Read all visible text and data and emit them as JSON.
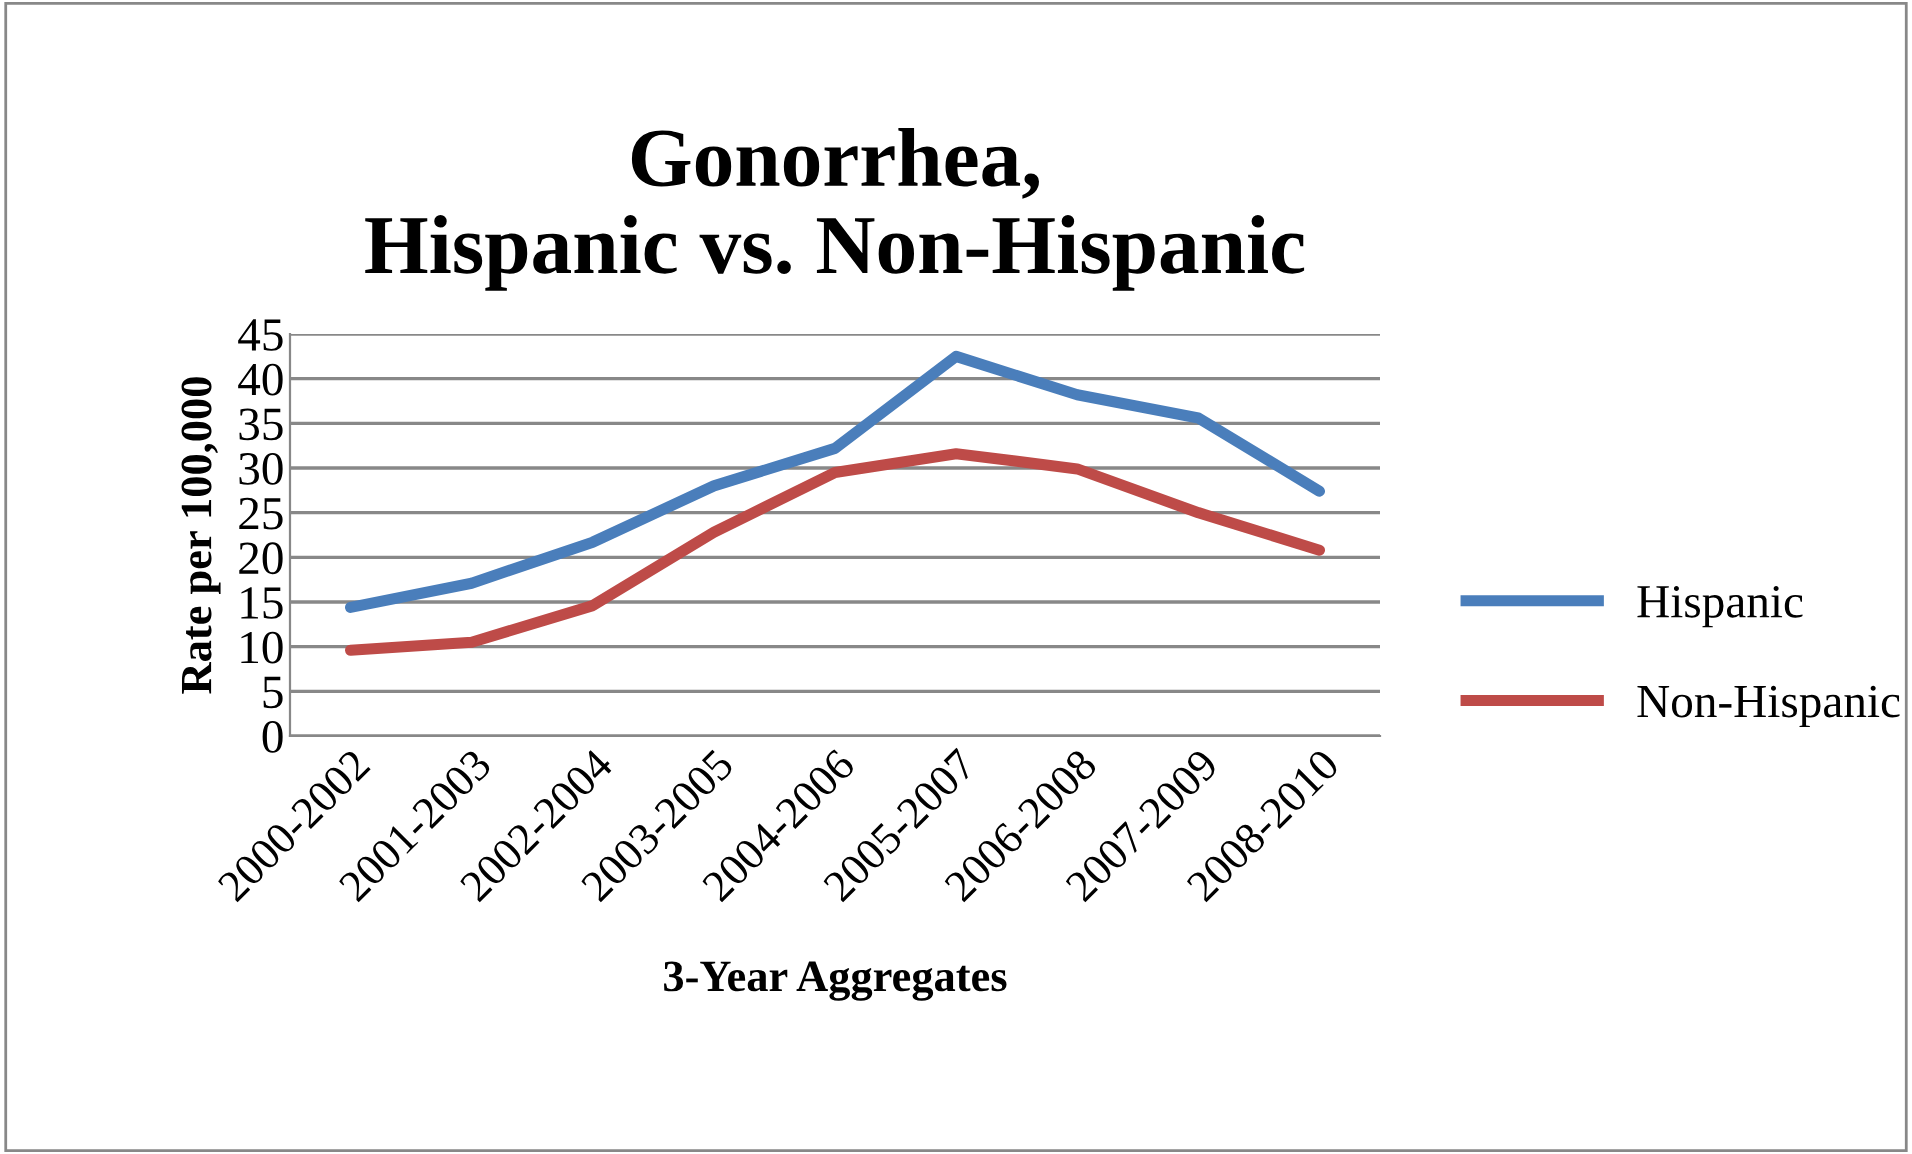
{
  "chart_data": {
    "type": "line",
    "title": "Gonorrhea,\nHispanic vs. Non-Hispanic",
    "xlabel": "3-Year Aggregates",
    "ylabel": "Rate per 100,000",
    "categories": [
      "2000-2002",
      "2001-2003",
      "2002-2004",
      "2003-2005",
      "2004-2006",
      "2005-2007",
      "2006-2008",
      "2007-2009",
      "2008-2010"
    ],
    "series": [
      {
        "name": "Hispanic",
        "color": "#4a7ebb",
        "values": [
          14.4,
          17.1,
          21.7,
          28,
          32.2,
          42.5,
          38.2,
          35.6,
          27.4
        ]
      },
      {
        "name": "Non-Hispanic",
        "color": "#be4b48",
        "values": [
          9.6,
          10.5,
          14.6,
          22.8,
          29.5,
          31.6,
          29.9,
          25,
          20.8
        ]
      }
    ],
    "ylim": [
      0,
      45
    ],
    "yticks": [
      0,
      5,
      10,
      15,
      20,
      25,
      30,
      35,
      40,
      45
    ],
    "grid": "y",
    "legend": "right",
    "marker": "none",
    "line_style": "solid"
  }
}
